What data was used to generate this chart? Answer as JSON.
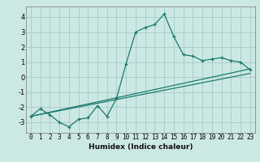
{
  "xlabel": "Humidex (Indice chaleur)",
  "bg_color": "#cce8e4",
  "grid_color": "#aacfca",
  "line_color": "#1a7a6e",
  "xlim": [
    -0.5,
    23.5
  ],
  "ylim": [
    -3.7,
    4.7
  ],
  "xticks": [
    0,
    1,
    2,
    3,
    4,
    5,
    6,
    7,
    8,
    9,
    10,
    11,
    12,
    13,
    14,
    15,
    16,
    17,
    18,
    19,
    20,
    21,
    22,
    23
  ],
  "yticks": [
    -3,
    -2,
    -1,
    0,
    1,
    2,
    3,
    4
  ],
  "scatter_x": [
    0,
    1,
    2,
    3,
    4,
    5,
    6,
    7,
    8,
    9,
    10,
    11,
    12,
    13,
    14,
    15,
    16,
    17,
    18,
    19,
    20,
    21,
    22,
    23
  ],
  "scatter_y": [
    -2.6,
    -2.1,
    -2.5,
    -3.0,
    -3.3,
    -2.8,
    -2.7,
    -1.9,
    -2.6,
    -1.4,
    0.9,
    3.0,
    3.3,
    3.5,
    4.2,
    2.7,
    1.5,
    1.4,
    1.1,
    1.2,
    1.3,
    1.1,
    1.0,
    0.5
  ],
  "trend1_x": [
    0,
    23
  ],
  "trend1_y": [
    -2.6,
    0.55
  ],
  "trend2_x": [
    0,
    23
  ],
  "trend2_y": [
    -2.6,
    0.25
  ],
  "xlabel_fontsize": 6.5,
  "tick_fontsize": 5.5
}
